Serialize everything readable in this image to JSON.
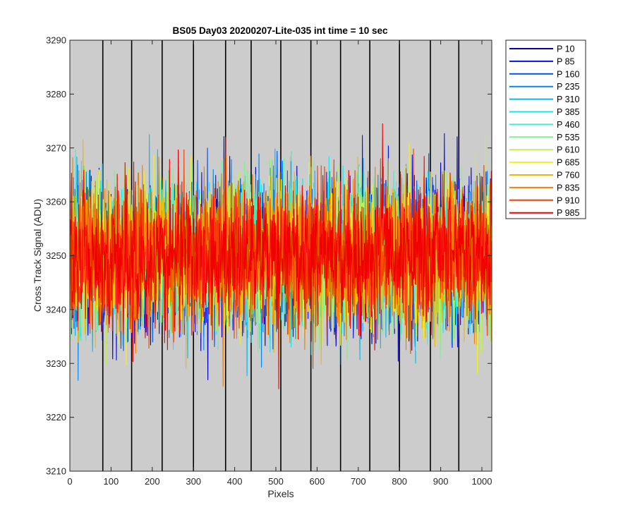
{
  "chart_data": {
    "type": "line",
    "title": "BS05 Day03 20200207-Lite-035 int time = 10 sec",
    "xlabel": "Pixels",
    "ylabel": "Cross Track Signal (ADU)",
    "xlim": [
      0,
      1024
    ],
    "ylim": [
      3210,
      3290
    ],
    "xticks": [
      0,
      100,
      200,
      300,
      400,
      500,
      600,
      700,
      800,
      900,
      1000
    ],
    "yticks": [
      3210,
      3220,
      3230,
      3240,
      3250,
      3260,
      3270,
      3280,
      3290
    ],
    "plot_background": "#cccccc",
    "vertical_markers": [
      80,
      150,
      224,
      300,
      378,
      440,
      512,
      585,
      657,
      728,
      800,
      875,
      944
    ],
    "legend_position": "outside-top-right",
    "noise": {
      "mean": 3250,
      "sigma": 6.5,
      "samples": 1024
    },
    "series": [
      {
        "name": "P 10",
        "color": "#0000bb"
      },
      {
        "name": "P 85",
        "color": "#0010ee"
      },
      {
        "name": "P 160",
        "color": "#0050f0"
      },
      {
        "name": "P 235",
        "color": "#0088f0"
      },
      {
        "name": "P 310",
        "color": "#00bbf0"
      },
      {
        "name": "P 385",
        "color": "#10e8f0"
      },
      {
        "name": "P 460",
        "color": "#40f0c8"
      },
      {
        "name": "P 535",
        "color": "#80f090"
      },
      {
        "name": "P 610",
        "color": "#c0f050"
      },
      {
        "name": "P 685",
        "color": "#f0f020"
      },
      {
        "name": "P 760",
        "color": "#f0b800"
      },
      {
        "name": "P 835",
        "color": "#f08000"
      },
      {
        "name": "P 910",
        "color": "#f04000"
      },
      {
        "name": "P 985",
        "color": "#f00000"
      }
    ]
  }
}
